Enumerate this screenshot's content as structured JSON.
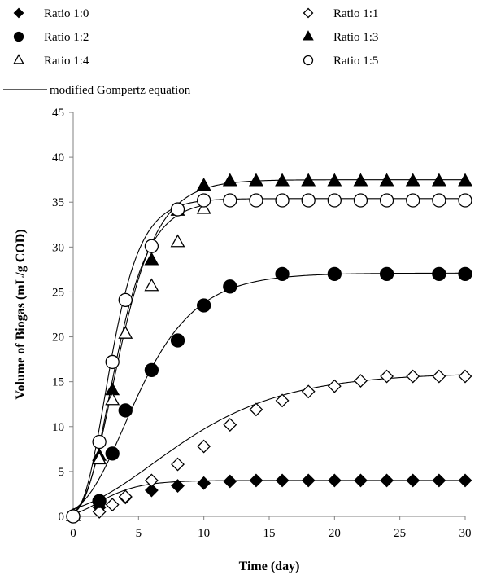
{
  "chart_data": {
    "type": "scatter",
    "title": "",
    "xlabel": "Time (day)",
    "ylabel": "Volume of Biogas (mL/g COD)",
    "xlim": [
      0,
      30
    ],
    "ylim": [
      0,
      45
    ],
    "x_ticks": [
      "0",
      "5",
      "10",
      "15",
      "20",
      "25",
      "30"
    ],
    "y_ticks": [
      "0",
      "5",
      "10",
      "15",
      "20",
      "25",
      "30",
      "35",
      "40",
      "45"
    ],
    "grid": false,
    "legend_position": "top",
    "fit_label": "modified Gompertz equation",
    "series": [
      {
        "name": "Ratio 1:0",
        "marker": "diamond-filled",
        "x": [
          0,
          2,
          4,
          6,
          8,
          10,
          12,
          14,
          16,
          18,
          20,
          22,
          24,
          26,
          28,
          30
        ],
        "y": [
          0,
          1.0,
          2.1,
          2.9,
          3.4,
          3.7,
          3.9,
          4.0,
          4.0,
          4.0,
          4.0,
          4.0,
          4.0,
          4.0,
          4.0,
          4.0
        ],
        "fit": {
          "P": 4.0,
          "Rm": 0.8,
          "lambda": 0.0
        }
      },
      {
        "name": "Ratio 1:1",
        "marker": "diamond-open",
        "x": [
          0,
          2,
          3,
          4,
          6,
          8,
          10,
          12,
          14,
          16,
          18,
          20,
          22,
          24,
          26,
          28,
          30
        ],
        "y": [
          0,
          0.5,
          1.3,
          2.2,
          4.0,
          5.8,
          7.8,
          10.2,
          11.9,
          12.9,
          13.9,
          14.5,
          15.1,
          15.6,
          15.6,
          15.6,
          15.6
        ],
        "fit": {
          "P": 16.0,
          "Rm": 1.05,
          "lambda": 0.5
        }
      },
      {
        "name": "Ratio 1:2",
        "marker": "circle-filled",
        "x": [
          0,
          2,
          3,
          4,
          6,
          8,
          10,
          12,
          16,
          20,
          24,
          28,
          30
        ],
        "y": [
          0,
          1.7,
          7.0,
          11.8,
          16.3,
          19.6,
          23.5,
          25.6,
          27.0,
          27.0,
          27.0,
          27.0,
          27.0
        ],
        "fit": {
          "P": 27.1,
          "Rm": 3.3,
          "lambda": 0.85
        }
      },
      {
        "name": "Ratio 1:3",
        "marker": "triangle-filled",
        "x": [
          0,
          2,
          3,
          6,
          8,
          10,
          12,
          14,
          16,
          18,
          20,
          22,
          24,
          26,
          28,
          30
        ],
        "y": [
          0,
          6.7,
          14.0,
          28.5,
          34.0,
          36.8,
          37.3,
          37.3,
          37.3,
          37.3,
          37.3,
          37.3,
          37.3,
          37.3,
          37.3,
          37.3
        ],
        "fit": {
          "P": 37.5,
          "Rm": 7.0,
          "lambda": 0.95
        }
      },
      {
        "name": "Ratio 1:4",
        "marker": "triangle-open",
        "x": [
          0,
          2,
          3,
          4,
          6,
          8,
          10
        ],
        "y": [
          0,
          6.3,
          12.9,
          20.3,
          25.6,
          30.5,
          34.2
        ],
        "fit": {
          "P": 35.2,
          "Rm": 7.4,
          "lambda": 0.95
        }
      },
      {
        "name": "Ratio 1:5",
        "marker": "circle-open",
        "x": [
          0,
          2,
          3,
          4,
          6,
          8,
          10,
          12,
          14,
          16,
          18,
          20,
          22,
          24,
          26,
          28,
          30
        ],
        "y": [
          0,
          8.3,
          17.2,
          24.1,
          30.1,
          34.2,
          35.2,
          35.2,
          35.2,
          35.2,
          35.2,
          35.2,
          35.2,
          35.2,
          35.2,
          35.2,
          35.2
        ],
        "fit": {
          "P": 35.4,
          "Rm": 8.5,
          "lambda": 0.85
        }
      }
    ]
  }
}
